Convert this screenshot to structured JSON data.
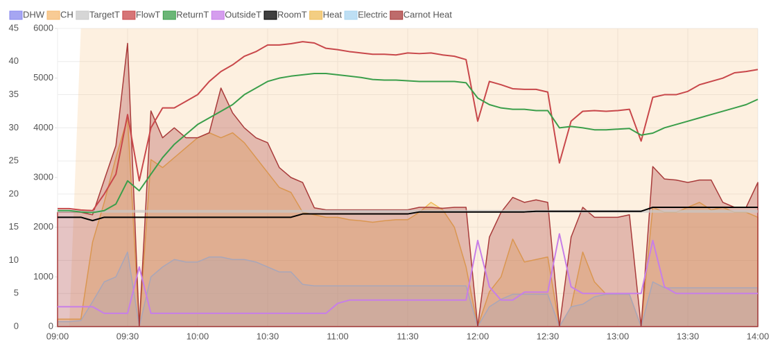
{
  "chart_data": {
    "type": "line",
    "x": [
      "09:00",
      "09:05",
      "09:10",
      "09:15",
      "09:20",
      "09:25",
      "09:30",
      "09:35",
      "09:40",
      "09:45",
      "09:50",
      "09:55",
      "10:00",
      "10:05",
      "10:10",
      "10:15",
      "10:20",
      "10:25",
      "10:30",
      "10:35",
      "10:40",
      "10:45",
      "10:50",
      "10:55",
      "11:00",
      "11:05",
      "11:10",
      "11:15",
      "11:20",
      "11:25",
      "11:30",
      "11:35",
      "11:40",
      "11:45",
      "11:50",
      "11:55",
      "12:00",
      "12:05",
      "12:10",
      "12:15",
      "12:20",
      "12:25",
      "12:30",
      "12:35",
      "12:40",
      "12:45",
      "12:50",
      "12:55",
      "13:00",
      "13:05",
      "13:10",
      "13:15",
      "13:20",
      "13:25",
      "13:30",
      "13:35",
      "13:40",
      "13:45",
      "13:50",
      "13:55",
      "14:00"
    ],
    "xlim": [
      "09:00",
      "14:00"
    ],
    "xticks": [
      "09:00",
      "09:30",
      "10:00",
      "10:30",
      "11:00",
      "11:30",
      "12:00",
      "12:30",
      "13:00",
      "13:30",
      "14:00"
    ],
    "ylim": [
      0,
      45
    ],
    "yticks": [
      0,
      5,
      10,
      15,
      20,
      25,
      30,
      35,
      40,
      45
    ],
    "y2lim": [
      0,
      6000
    ],
    "y2ticks": [
      0,
      1000,
      2000,
      3000,
      4000,
      5000,
      6000
    ],
    "grid": true,
    "series": [
      {
        "name": "DHW",
        "color": "#8888ee",
        "style": "band",
        "axis": "y2",
        "values": [
          0,
          0,
          0,
          0,
          0,
          0,
          0,
          0,
          0,
          0,
          0,
          0,
          0,
          0,
          0,
          0,
          0,
          0,
          0,
          0,
          0,
          0,
          0,
          0,
          0,
          0,
          0,
          0,
          0,
          0,
          0,
          0,
          0,
          0,
          0,
          0,
          0,
          0,
          0,
          0,
          0,
          0,
          0,
          0,
          0,
          0,
          0,
          0,
          0,
          0,
          0,
          0,
          0,
          0,
          0,
          0,
          0,
          0,
          0,
          0,
          0
        ]
      },
      {
        "name": "CH",
        "color": "#f5b971",
        "style": "band",
        "axis": "y2",
        "values": [
          0,
          0,
          1,
          1,
          1,
          1,
          1,
          1,
          1,
          1,
          1,
          1,
          1,
          1,
          1,
          1,
          1,
          1,
          1,
          1,
          1,
          1,
          1,
          1,
          1,
          1,
          1,
          1,
          1,
          1,
          1,
          1,
          1,
          1,
          1,
          1,
          1,
          1,
          1,
          1,
          1,
          1,
          1,
          1,
          1,
          1,
          1,
          1,
          1,
          1,
          1,
          1,
          1,
          1,
          1,
          1,
          1,
          1,
          1,
          1,
          1
        ]
      },
      {
        "name": "TargetT",
        "color": "#c8c8c8",
        "style": "line",
        "values": [
          17.4,
          17.4,
          17.4,
          17.4,
          17.4,
          17.4,
          17.4,
          17.4,
          17.4,
          17.4,
          17.4,
          17.4,
          17.4,
          17.4,
          17.4,
          17.4,
          17.4,
          17.4,
          17.4,
          17.4,
          17.4,
          17.4,
          17.4,
          17.4,
          17.4,
          17.4,
          17.4,
          17.4,
          17.4,
          17.4,
          17.4,
          17.4,
          17.4,
          17.4,
          17.4,
          17.4,
          17.4,
          17.4,
          17.4,
          17.4,
          17.4,
          17.4,
          17.4,
          17.4,
          17.4,
          17.4,
          17.4,
          17.4,
          17.4,
          17.4,
          17.4,
          17.4,
          17.4,
          17.4,
          17.4,
          17.4,
          17.4,
          17.4,
          17.4,
          17.4,
          17.4
        ]
      },
      {
        "name": "FlowT",
        "color": "#c8474a",
        "style": "line",
        "values": [
          17.8,
          17.8,
          17.6,
          17.5,
          20,
          23,
          32,
          22,
          30,
          33,
          33,
          34,
          35,
          37,
          38.5,
          39.5,
          40.8,
          41.5,
          42.5,
          42.5,
          42.7,
          43,
          42.8,
          42,
          41.8,
          41.5,
          41.3,
          41.1,
          41.1,
          41,
          41.3,
          41.2,
          41.3,
          41,
          40.8,
          40.3,
          31,
          37,
          36.5,
          35.9,
          35.8,
          35.8,
          35.4,
          24.7,
          31,
          32.5,
          32.6,
          32.5,
          32.6,
          32.8,
          28,
          34.6,
          35,
          35,
          35.5,
          36.5,
          37,
          37.5,
          38.3,
          38.5,
          38.8
        ]
      },
      {
        "name": "ReturnT",
        "color": "#3a9e4a",
        "style": "line",
        "values": [
          17.5,
          17.5,
          17.3,
          17.2,
          17.5,
          18.5,
          22,
          20.5,
          23,
          25.5,
          27.5,
          29,
          30.5,
          31.5,
          32.5,
          33.5,
          35,
          36,
          37,
          37.5,
          37.8,
          38,
          38.2,
          38.2,
          38,
          37.8,
          37.6,
          37.3,
          37.2,
          37.2,
          37.1,
          37,
          37,
          37,
          37,
          36.8,
          34.5,
          33.5,
          33,
          32.8,
          32.8,
          32.6,
          32.6,
          30,
          30.2,
          30,
          29.7,
          29.7,
          29.8,
          29.9,
          28.9,
          29.2,
          30,
          30.5,
          31,
          31.5,
          32,
          32.5,
          33,
          33.5,
          34.3
        ]
      },
      {
        "name": "OutsideT",
        "color": "#c77ee8",
        "style": "line",
        "values": [
          3,
          3,
          3,
          3,
          2,
          2,
          2,
          9,
          2,
          2,
          2,
          2,
          2,
          2,
          2,
          2,
          2,
          2,
          2,
          2,
          2,
          2,
          2,
          2,
          3.5,
          4,
          4,
          4,
          4,
          4,
          4,
          4,
          4,
          4,
          4,
          4,
          13,
          6,
          4,
          4,
          5.2,
          5.2,
          5.2,
          14,
          6,
          5,
          5,
          5,
          5,
          5,
          5,
          13,
          6,
          5,
          5,
          5,
          5,
          5,
          5,
          5,
          5
        ]
      },
      {
        "name": "RoomT",
        "color": "#000000",
        "style": "line",
        "values": [
          16.5,
          16.5,
          16.5,
          16,
          16.5,
          16.5,
          16.5,
          16.5,
          16.5,
          16.5,
          16.5,
          16.5,
          16.5,
          16.5,
          16.5,
          16.5,
          16.5,
          16.5,
          16.5,
          16.5,
          16.5,
          17,
          17,
          17,
          17,
          17,
          17,
          17,
          17,
          17,
          17,
          17.3,
          17.3,
          17.3,
          17.3,
          17.3,
          17.3,
          17.3,
          17.3,
          17.3,
          17.3,
          17.4,
          17.4,
          17.4,
          17.4,
          17.4,
          17.4,
          17.4,
          17.4,
          17.4,
          17.4,
          18,
          18,
          18,
          18,
          18,
          18,
          18,
          18,
          18,
          18
        ]
      },
      {
        "name": "Heat",
        "color": "#efbd5a",
        "style": "area",
        "axis": "y2",
        "values": [
          150,
          150,
          150,
          1700,
          2500,
          3400,
          4200,
          0,
          3360,
          3200,
          3400,
          3600,
          3800,
          3900,
          3800,
          3900,
          3700,
          3400,
          3100,
          2800,
          2700,
          2300,
          2250,
          2200,
          2200,
          2150,
          2130,
          2100,
          2130,
          2150,
          2150,
          2300,
          2500,
          2350,
          2000,
          1200,
          0,
          700,
          1000,
          1760,
          1300,
          1350,
          1400,
          0,
          400,
          1500,
          900,
          650,
          650,
          650,
          0,
          2400,
          2300,
          2300,
          2400,
          2500,
          2350,
          2400,
          2300,
          2300,
          2200
        ]
      },
      {
        "name": "Electric",
        "color": "#a8d4f0",
        "style": "area",
        "axis": "y2",
        "values": [
          100,
          100,
          120,
          500,
          900,
          1000,
          1500,
          0,
          1000,
          1200,
          1350,
          1300,
          1300,
          1400,
          1400,
          1350,
          1350,
          1300,
          1200,
          1100,
          1100,
          850,
          820,
          820,
          820,
          820,
          820,
          820,
          820,
          820,
          820,
          820,
          820,
          820,
          820,
          820,
          0,
          400,
          550,
          650,
          650,
          650,
          650,
          0,
          400,
          450,
          600,
          650,
          650,
          650,
          0,
          900,
          780,
          780,
          780,
          780,
          780,
          780,
          780,
          780,
          780
        ]
      },
      {
        "name": "Carnot Heat",
        "color": "#a83a3a",
        "style": "area",
        "axis": "y2",
        "values": [
          2300,
          2300,
          2300,
          2250,
          2950,
          3640,
          5700,
          0,
          4340,
          3800,
          4000,
          3800,
          3800,
          3900,
          4800,
          4300,
          4000,
          3800,
          3700,
          3200,
          3000,
          2900,
          2390,
          2350,
          2350,
          2350,
          2350,
          2350,
          2350,
          2350,
          2350,
          2400,
          2400,
          2380,
          2400,
          2400,
          0,
          1800,
          2300,
          2600,
          2500,
          2550,
          2500,
          0,
          1800,
          2400,
          2200,
          2200,
          2200,
          2250,
          0,
          3220,
          2970,
          2950,
          2900,
          2950,
          2950,
          2500,
          2400,
          2400,
          2900
        ]
      }
    ]
  }
}
